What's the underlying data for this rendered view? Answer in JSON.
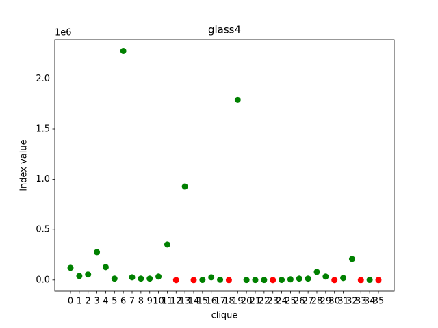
{
  "chart_data": {
    "type": "scatter",
    "title": "glass4",
    "xlabel": "clique",
    "ylabel": "index value",
    "offset_label": "1e6",
    "x": [
      0,
      1,
      2,
      3,
      4,
      5,
      6,
      7,
      8,
      9,
      10,
      11,
      12,
      13,
      14,
      15,
      16,
      17,
      18,
      19,
      20,
      21,
      22,
      23,
      24,
      25,
      26,
      27,
      28,
      29,
      30,
      31,
      32,
      33,
      34,
      35
    ],
    "values": [
      0.122,
      0.04,
      0.055,
      0.278,
      0.129,
      0.014,
      2.278,
      0.027,
      0.014,
      0.014,
      0.034,
      0.353,
      0,
      0.929,
      0,
      0.002,
      0.027,
      0.003,
      0,
      1.79,
      0.001,
      0.001,
      0.001,
      0,
      0.002,
      0.007,
      0.014,
      0.014,
      0.081,
      0.034,
      0,
      0.02,
      0.21,
      0,
      0.002,
      0
    ],
    "colors": [
      "green",
      "green",
      "green",
      "green",
      "green",
      "green",
      "green",
      "green",
      "green",
      "green",
      "green",
      "green",
      "red",
      "green",
      "red",
      "green",
      "green",
      "green",
      "red",
      "green",
      "green",
      "green",
      "green",
      "red",
      "green",
      "green",
      "green",
      "green",
      "green",
      "green",
      "red",
      "green",
      "green",
      "red",
      "green",
      "red"
    ],
    "xlim": [
      -1.79,
      36.79
    ],
    "ylim": [
      -0.11,
      2.39
    ],
    "xticks": [
      0,
      1,
      2,
      3,
      4,
      5,
      6,
      7,
      8,
      9,
      10,
      11,
      12,
      13,
      14,
      15,
      16,
      17,
      18,
      19,
      20,
      21,
      22,
      23,
      24,
      25,
      26,
      27,
      28,
      29,
      30,
      31,
      32,
      33,
      34,
      35
    ],
    "yticks": [
      {
        "value": 0,
        "label": "0.0"
      },
      0.5,
      {
        "value": 1,
        "label": "1.0"
      },
      1.5,
      {
        "value": 2,
        "label": "2.0"
      }
    ],
    "grid": false
  }
}
